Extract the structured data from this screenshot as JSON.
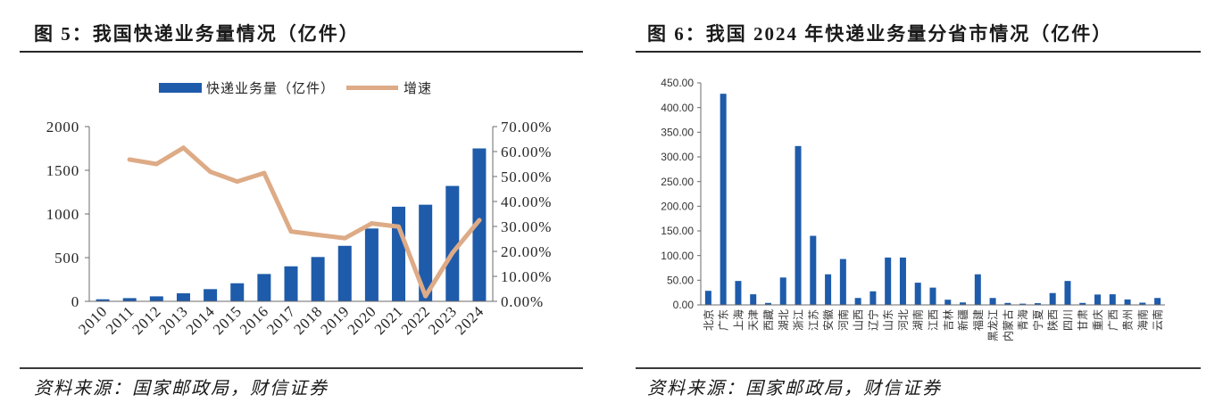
{
  "chart_data": [
    {
      "type": "bar",
      "title": "图 5：我国快递业务量情况（亿件）",
      "source": "资料来源：国家邮政局，财信证券",
      "categories": [
        "2010",
        "2011",
        "2012",
        "2013",
        "2014",
        "2015",
        "2016",
        "2017",
        "2018",
        "2019",
        "2020",
        "2021",
        "2022",
        "2023",
        "2024"
      ],
      "series": [
        {
          "name": "快递业务量（亿件）",
          "type": "bar",
          "axis": "left",
          "color": "#1E5BAA",
          "values": [
            23.4,
            36.7,
            56.9,
            91.9,
            139.6,
            206.7,
            312.8,
            400.6,
            507.1,
            635.2,
            833.6,
            1083.0,
            1105.8,
            1320.7,
            1750.0
          ]
        },
        {
          "name": "增速",
          "type": "line",
          "axis": "right",
          "color": "#DDAB86",
          "values": [
            null,
            56.8,
            55.0,
            61.5,
            51.9,
            48.0,
            51.4,
            28.0,
            26.6,
            25.3,
            31.2,
            29.9,
            2.1,
            19.4,
            32.5
          ]
        }
      ],
      "y_left": {
        "min": 0,
        "max": 2000,
        "tick_labels": [
          "0",
          "500",
          "1000",
          "1500",
          "2000"
        ]
      },
      "y_right": {
        "min": 0,
        "max": 70,
        "tick_labels": [
          "0.00%",
          "10.00%",
          "20.00%",
          "30.00%",
          "40.00%",
          "50.00%",
          "60.00%",
          "70.00%"
        ]
      },
      "xlabel": "",
      "ylabel": "",
      "legend": "top",
      "grid": false
    },
    {
      "type": "bar",
      "title": "图 6：我国 2024 年快递业务量分省市情况（亿件）",
      "source": "资料来源：国家邮政局，财信证券",
      "categories": [
        "北京",
        "广东",
        "上海",
        "天津",
        "西藏",
        "湖北",
        "浙江",
        "江苏",
        "安徽",
        "河南",
        "山西",
        "辽宁",
        "山东",
        "河北",
        "湖南",
        "江西",
        "吉林",
        "新疆",
        "福建",
        "黑龙江",
        "内蒙古",
        "青海",
        "宁夏",
        "陕西",
        "四川",
        "甘肃",
        "重庆",
        "广西",
        "贵州",
        "海南",
        "云南"
      ],
      "series": [
        {
          "type": "bar",
          "color": "#1E5BAA",
          "values": [
            28.5,
            428.0,
            48.5,
            21.5,
            4.0,
            55.5,
            322.0,
            140.0,
            62.0,
            93.0,
            14.0,
            27.5,
            96.0,
            96.0,
            45.0,
            35.0,
            10.5,
            5.0,
            62.0,
            14.0,
            4.0,
            2.5,
            3.5,
            24.0,
            48.5,
            4.0,
            21.0,
            21.5,
            11.0,
            4.5,
            14.0
          ]
        }
      ],
      "ylim": [
        0,
        450
      ],
      "y_tick_labels": [
        "0.00",
        "50.00",
        "100.00",
        "150.00",
        "200.00",
        "250.00",
        "300.00",
        "350.00",
        "400.00",
        "450.00"
      ],
      "xlabel": "",
      "ylabel": "",
      "legend": "none",
      "grid": false
    }
  ]
}
